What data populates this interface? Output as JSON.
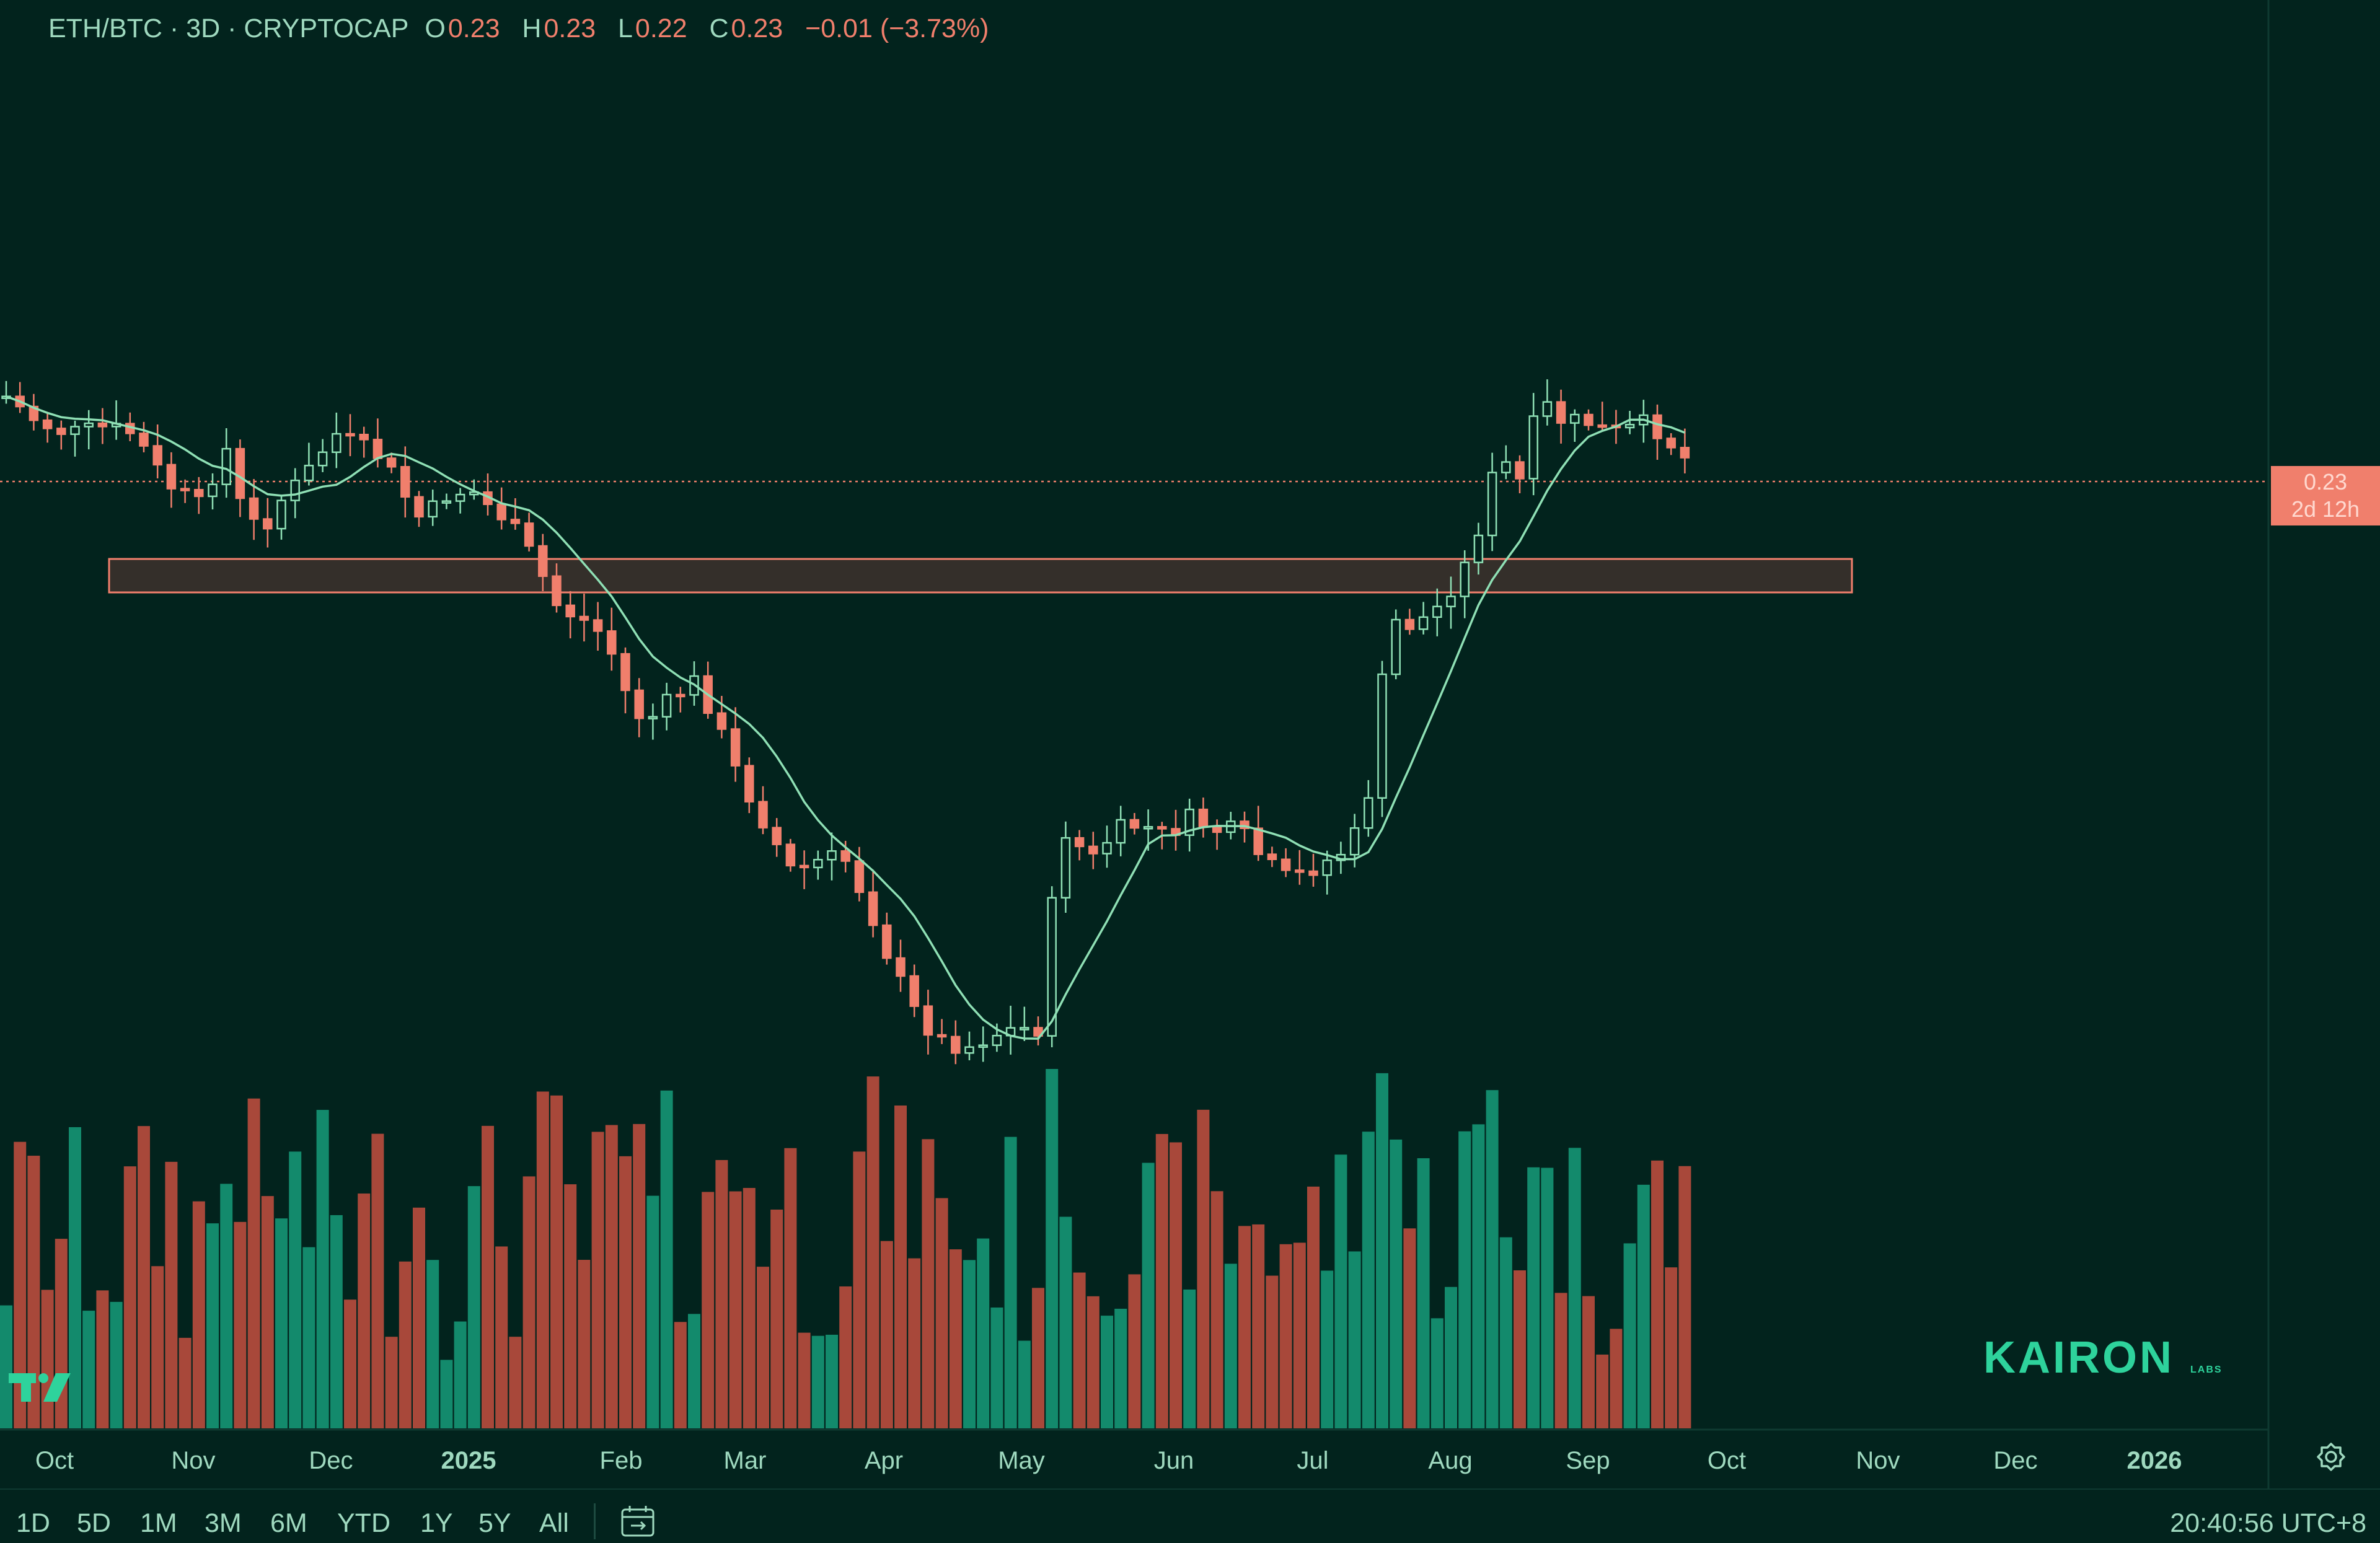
{
  "header": {
    "symbol": "ETH/BTC · 3D · CRYPTOCAP",
    "open_label": "O",
    "open": "0.23",
    "high_label": "H",
    "high": "0.23",
    "low_label": "L",
    "low": "0.22",
    "close_label": "C",
    "close": "0.23",
    "change": "−0.01 (−3.73%)"
  },
  "price_tag": {
    "price": "0.23",
    "countdown": "2d 12h"
  },
  "timeframes": [
    "1D",
    "5D",
    "1M",
    "3M",
    "6M",
    "YTD",
    "1Y",
    "5Y",
    "All"
  ],
  "clock": "20:40:56 UTC+8",
  "logo": {
    "name": "KAIRON",
    "sub": "LABS"
  },
  "icons": {
    "calendar": "calendar-range-icon",
    "settings": "gear-icon",
    "brand": "tradingview-logo-icon"
  },
  "colors": {
    "up": "#16876a",
    "down": "#f07f6c",
    "up_volume": "#138a6c",
    "down_volume": "#a8483a",
    "ma": "#8fe0b5",
    "zone_fill": "#5e3a34",
    "zone_stroke": "#f07f6c",
    "background": "#02231d"
  },
  "chart_data": {
    "type": "candlestick",
    "interval": "3D",
    "x_axis_labels": [
      "Oct",
      "Nov",
      "Dec",
      "2025",
      "Feb",
      "Mar",
      "Apr",
      "May",
      "Jun",
      "Jul",
      "Aug",
      "Sep",
      "Oct",
      "Nov",
      "Dec",
      "2026"
    ],
    "price_axis_visible": false,
    "last_price": 0.23,
    "horizontal_zone": true,
    "moving_average": true,
    "volume_pane": true
  }
}
